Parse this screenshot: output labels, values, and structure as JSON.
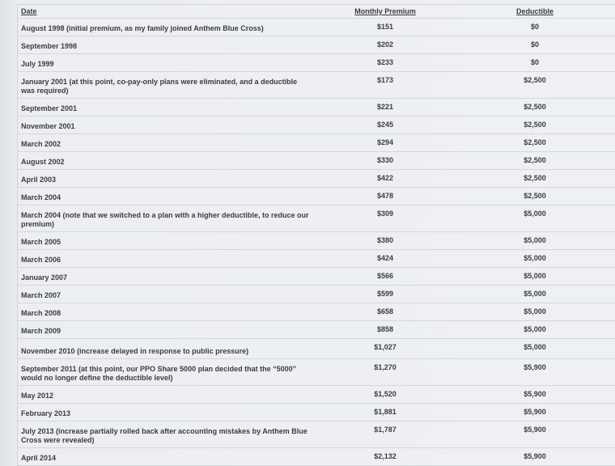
{
  "headers": {
    "date": "Date",
    "premium": "Monthly Premium",
    "deductible": "Deductible"
  },
  "rows": [
    {
      "date": "August 1998 (initial premium, as my family joined Anthem Blue Cross)",
      "premium": "$151",
      "deductible": "$0"
    },
    {
      "date": "September 1998",
      "premium": "$202",
      "deductible": "$0"
    },
    {
      "date": "July 1999",
      "premium": "$233",
      "deductible": "$0"
    },
    {
      "date": "January 2001 (at this point, co-pay-only plans were eliminated, and a deductible was required)",
      "premium": "$173",
      "deductible": "$2,500",
      "tall": true
    },
    {
      "date": "September 2001",
      "premium": "$221",
      "deductible": "$2,500"
    },
    {
      "date": "November 2001",
      "premium": "$245",
      "deductible": "$2,500"
    },
    {
      "date": "March 2002",
      "premium": "$294",
      "deductible": "$2,500"
    },
    {
      "date": "August 2002",
      "premium": "$330",
      "deductible": "$2,500"
    },
    {
      "date": "April 2003",
      "premium": "$422",
      "deductible": "$2,500"
    },
    {
      "date": "March 2004",
      "premium": "$478",
      "deductible": "$2,500"
    },
    {
      "date": "March 2004 (note that we switched to a plan with a higher deductible, to reduce our premium)",
      "premium": "$309",
      "deductible": "$5,000",
      "tall": true
    },
    {
      "date": "March 2005",
      "premium": "$380",
      "deductible": "$5,000"
    },
    {
      "date": "March 2006",
      "premium": "$424",
      "deductible": "$5,000"
    },
    {
      "date": "January 2007",
      "premium": "$566",
      "deductible": "$5,000"
    },
    {
      "date": "March 2007",
      "premium": "$599",
      "deductible": "$5,000"
    },
    {
      "date": "March 2008",
      "premium": "$658",
      "deductible": "$5,000"
    },
    {
      "date": "March 2009",
      "premium": "$858",
      "deductible": "$5,000"
    },
    {
      "date": "November 2010 (increase delayed in response to public pressure)",
      "premium": "$1,027",
      "deductible": "$5,000"
    },
    {
      "date": "September 2011 (at this point, our PPO Share 5000 plan decided that the “5000” would no longer define the deductible level)",
      "premium": "$1,270",
      "deductible": "$5,900",
      "tall": true
    },
    {
      "date": "May 2012",
      "premium": "$1,520",
      "deductible": "$5,900"
    },
    {
      "date": "February 2013",
      "premium": "$1,881",
      "deductible": "$5,900"
    },
    {
      "date": "July 2013 (increase partially rolled back after accounting mistakes by Anthem Blue Cross were revealed)",
      "premium": "$1,787",
      "deductible": "$5,900",
      "tall": true
    },
    {
      "date": "April 2014",
      "premium": "$2,132",
      "deductible": "$5,900"
    }
  ]
}
